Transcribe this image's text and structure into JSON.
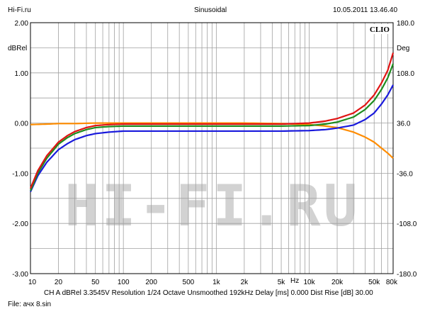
{
  "header": {
    "left": "Hi-Fi.ru",
    "center": "Sinusoidal",
    "right": "10.05.2011 13.46.40"
  },
  "badge": "CLIO",
  "watermark": "HI-FI.RU",
  "footer": {
    "status": "CH A   dBRel 3.3545V   Resolution 1/24 Octave   Unsmoothed   192kHz   Delay [ms] 0.000   Dist Rise [dB] 30.00",
    "file": "File: ачх 8.sin"
  },
  "chart_data": {
    "type": "line",
    "xscale": "log",
    "xlim": [
      10,
      80000
    ],
    "ylim": [
      -3.0,
      2.0
    ],
    "y2lim": [
      -180,
      180
    ],
    "ylabel": "dBRel",
    "y2label": "Deg",
    "xlabel": "Hz",
    "grid": true,
    "x_ticks": [
      {
        "v": 10,
        "label": "10"
      },
      {
        "v": 20,
        "label": "20"
      },
      {
        "v": 50,
        "label": "50"
      },
      {
        "v": 100,
        "label": "100"
      },
      {
        "v": 200,
        "label": "200"
      },
      {
        "v": 500,
        "label": "500"
      },
      {
        "v": 1000,
        "label": "1k"
      },
      {
        "v": 2000,
        "label": "2k"
      },
      {
        "v": 5000,
        "label": "5k"
      },
      {
        "v": 10000,
        "label": "10k"
      },
      {
        "v": 20000,
        "label": "20k"
      },
      {
        "v": 50000,
        "label": "50k"
      },
      {
        "v": 80000,
        "label": "80k"
      }
    ],
    "y_ticks": [
      {
        "v": 2.0,
        "label": "2.00"
      },
      {
        "v": 1.0,
        "label": "1.00"
      },
      {
        "v": 0.0,
        "label": "0.00"
      },
      {
        "v": -1.0,
        "label": "-1.00"
      },
      {
        "v": -2.0,
        "label": "-2.00"
      },
      {
        "v": -3.0,
        "label": "-3.00"
      }
    ],
    "y2_ticks": [
      {
        "v": 180,
        "label": "180.0"
      },
      {
        "v": 108,
        "label": "108.0"
      },
      {
        "v": 36,
        "label": "36.0"
      },
      {
        "v": -36,
        "label": "-36.0"
      },
      {
        "v": -108,
        "label": "-108.0"
      },
      {
        "v": -180,
        "label": "-180.0"
      }
    ],
    "series": [
      {
        "color": "#ff8c00",
        "x": [
          10,
          15,
          20,
          30,
          50,
          100,
          200,
          500,
          1000,
          2000,
          5000,
          10000,
          15000,
          20000,
          30000,
          40000,
          50000,
          60000,
          70000,
          80000
        ],
        "y": [
          -0.03,
          -0.02,
          -0.01,
          -0.01,
          0.0,
          0.0,
          0.0,
          0.0,
          0.0,
          0.0,
          -0.01,
          -0.03,
          -0.06,
          -0.09,
          -0.18,
          -0.28,
          -0.38,
          -0.5,
          -0.6,
          -0.7
        ]
      },
      {
        "color": "#1a1adc",
        "x": [
          10,
          12,
          15,
          20,
          25,
          30,
          40,
          50,
          70,
          100,
          150,
          200,
          500,
          1000,
          2000,
          5000,
          10000,
          15000,
          20000,
          30000,
          40000,
          50000,
          60000,
          70000,
          80000
        ],
        "y": [
          -1.37,
          -1.05,
          -0.78,
          -0.53,
          -0.41,
          -0.33,
          -0.25,
          -0.21,
          -0.18,
          -0.16,
          -0.16,
          -0.16,
          -0.16,
          -0.16,
          -0.16,
          -0.16,
          -0.15,
          -0.13,
          -0.1,
          -0.04,
          0.07,
          0.2,
          0.38,
          0.56,
          0.76
        ]
      },
      {
        "color": "#1e8c1e",
        "x": [
          10,
          12,
          15,
          20,
          25,
          30,
          40,
          50,
          70,
          100,
          150,
          200,
          500,
          1000,
          2000,
          5000,
          10000,
          15000,
          20000,
          30000,
          40000,
          50000,
          60000,
          70000,
          80000
        ],
        "y": [
          -1.35,
          -1.0,
          -0.7,
          -0.42,
          -0.29,
          -0.21,
          -0.13,
          -0.09,
          -0.07,
          -0.06,
          -0.06,
          -0.06,
          -0.06,
          -0.06,
          -0.06,
          -0.06,
          -0.05,
          -0.02,
          0.02,
          0.12,
          0.27,
          0.45,
          0.67,
          0.9,
          1.18
        ]
      },
      {
        "color": "#e01414",
        "x": [
          10,
          12,
          15,
          20,
          25,
          30,
          40,
          50,
          70,
          100,
          150,
          200,
          500,
          1000,
          2000,
          5000,
          10000,
          15000,
          20000,
          30000,
          40000,
          50000,
          60000,
          70000,
          80000
        ],
        "y": [
          -1.3,
          -0.95,
          -0.65,
          -0.38,
          -0.25,
          -0.17,
          -0.09,
          -0.05,
          -0.03,
          -0.02,
          -0.02,
          -0.02,
          -0.02,
          -0.02,
          -0.02,
          -0.02,
          0.0,
          0.04,
          0.09,
          0.2,
          0.36,
          0.56,
          0.8,
          1.05,
          1.4
        ]
      }
    ]
  }
}
